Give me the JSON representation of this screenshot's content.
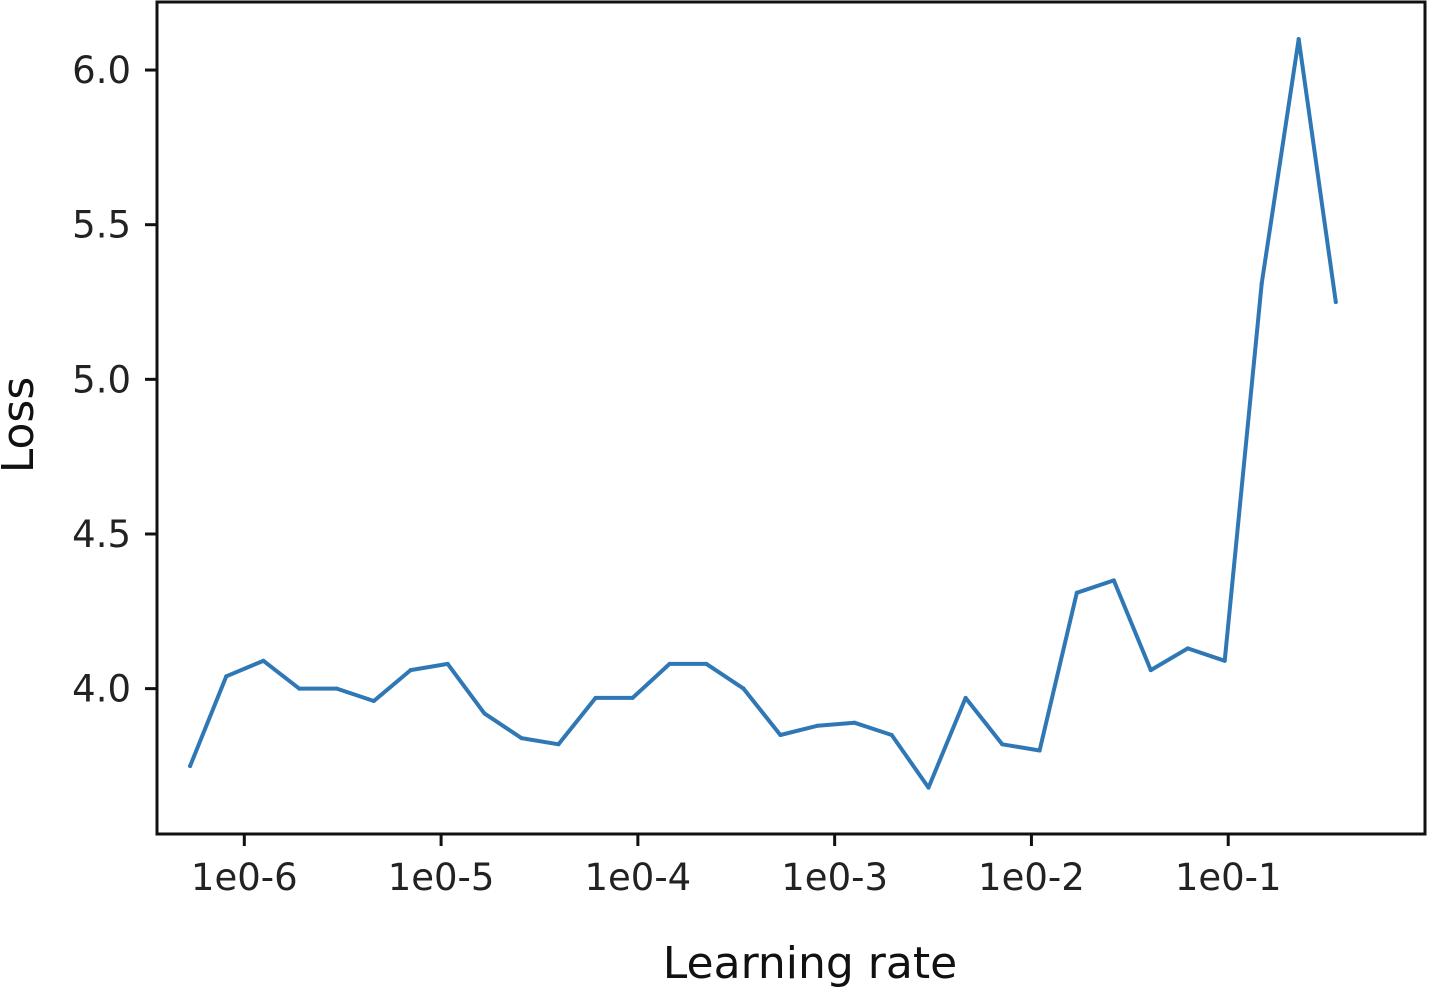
{
  "chart_data": {
    "type": "line",
    "title": "",
    "xlabel": "Learning rate",
    "ylabel": "Loss",
    "x_scale": "log",
    "x_ticks": [
      {
        "value": 1e-06,
        "label": "1e0-6"
      },
      {
        "value": 1e-05,
        "label": "1e0-5"
      },
      {
        "value": 0.0001,
        "label": "1e0-4"
      },
      {
        "value": 0.001,
        "label": "1e0-3"
      },
      {
        "value": 0.01,
        "label": "1e0-2"
      },
      {
        "value": 0.1,
        "label": "1e0-1"
      }
    ],
    "y_ticks": [
      {
        "value": 4.0,
        "label": "4.0"
      },
      {
        "value": 4.5,
        "label": "4.5"
      },
      {
        "value": 5.0,
        "label": "5.0"
      },
      {
        "value": 5.5,
        "label": "5.5"
      },
      {
        "value": 6.0,
        "label": "6.0"
      }
    ],
    "xlim": [
      3.6e-07,
      1.0
    ],
    "ylim": [
      3.53,
      6.22
    ],
    "grid": false,
    "line_color": "#2f78b5",
    "series": [
      {
        "x": [
          5.3e-07,
          8.1e-07,
          1.25e-06,
          1.9e-06,
          2.95e-06,
          4.55e-06,
          7e-06,
          1.08e-05,
          1.66e-05,
          2.56e-05,
          3.95e-05,
          6.1e-05,
          9.4e-05,
          0.000145,
          0.000223,
          0.000344,
          0.00053,
          0.00082,
          0.00126,
          0.00195,
          0.003,
          0.00463,
          0.0071,
          0.011,
          0.017,
          0.0262,
          0.0404,
          0.0623,
          0.096,
          0.148,
          0.228,
          0.352
        ],
        "y": [
          3.75,
          4.04,
          4.09,
          4.0,
          4.0,
          3.96,
          4.06,
          4.08,
          3.92,
          3.84,
          3.82,
          3.97,
          3.97,
          4.08,
          4.08,
          4.0,
          3.85,
          3.88,
          3.89,
          3.85,
          3.68,
          3.97,
          3.82,
          3.8,
          4.31,
          4.35,
          4.06,
          4.13,
          4.09,
          5.31,
          6.1,
          5.25
        ]
      }
    ]
  }
}
